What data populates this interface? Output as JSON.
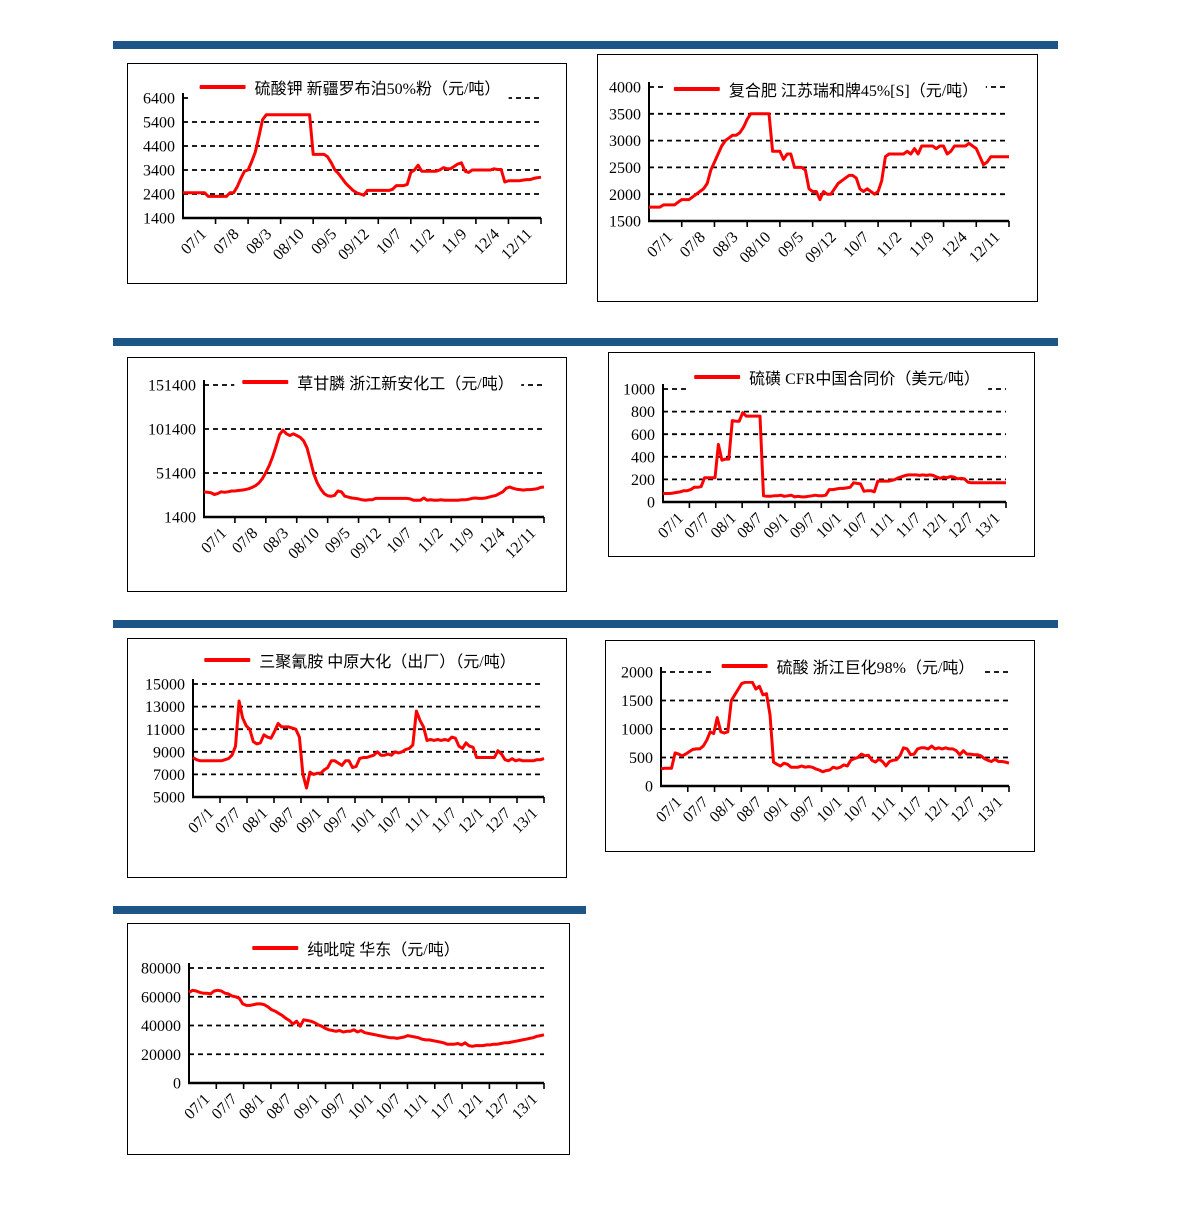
{
  "page": {
    "background": "#FFFFFF",
    "accent_bar_color": "#1D5586",
    "series_color": "#FE0000",
    "grid_color": "#000000"
  },
  "chart_data": [
    {
      "type": "line",
      "title": "硫酸钾 新疆罗布泊50%粉（元/吨）",
      "ylim": [
        1400,
        6400
      ],
      "yticks": [
        1400,
        2400,
        3400,
        4400,
        5400,
        6400
      ],
      "xticklabels": [
        "07/1",
        "07/8",
        "08/3",
        "08/10",
        "09/5",
        "09/12",
        "10/7",
        "11/2",
        "11/9",
        "12/4",
        "12/11"
      ],
      "grid": "horizontal-dashed",
      "legend_position": "top-overlap",
      "values": [
        2450,
        2450,
        2450,
        2450,
        2450,
        2450,
        2450,
        2300,
        2300,
        2300,
        2300,
        2300,
        2300,
        2450,
        2450,
        2700,
        3050,
        3350,
        3400,
        3750,
        4150,
        4800,
        5500,
        5700,
        5700,
        5700,
        5700,
        5700,
        5700,
        5700,
        5700,
        5700,
        5700,
        5700,
        5700,
        5700,
        4050,
        4050,
        4050,
        4050,
        3950,
        3700,
        3400,
        3250,
        3050,
        2850,
        2700,
        2550,
        2450,
        2400,
        2350,
        2550,
        2550,
        2550,
        2550,
        2550,
        2550,
        2550,
        2600,
        2750,
        2750,
        2750,
        2800,
        3300,
        3400,
        3600,
        3350,
        3350,
        3350,
        3350,
        3350,
        3400,
        3500,
        3450,
        3450,
        3550,
        3650,
        3700,
        3350,
        3300,
        3400,
        3400,
        3400,
        3400,
        3400,
        3400,
        3450,
        3420,
        3420,
        2900,
        2950,
        2950,
        2950,
        2950,
        2980,
        3000,
        3000,
        3050,
        3080,
        3100
      ]
    },
    {
      "type": "line",
      "title": "复合肥 江苏瑞和牌45%[S]（元/吨）",
      "ylim": [
        1500,
        4000
      ],
      "yticks": [
        1500,
        2000,
        2500,
        3000,
        3500,
        4000
      ],
      "xticklabels": [
        "07/1",
        "07/8",
        "08/3",
        "08/10",
        "09/5",
        "09/12",
        "10/7",
        "11/2",
        "11/9",
        "12/4",
        "12/11"
      ],
      "grid": "horizontal-dashed",
      "legend_position": "top-overlap",
      "values": [
        1760,
        1760,
        1760,
        1760,
        1800,
        1800,
        1800,
        1800,
        1850,
        1900,
        1900,
        1900,
        1950,
        2000,
        2050,
        2100,
        2200,
        2450,
        2600,
        2750,
        2900,
        3000,
        3050,
        3100,
        3100,
        3150,
        3250,
        3400,
        3500,
        3500,
        3500,
        3500,
        3500,
        3500,
        2800,
        2800,
        2800,
        2650,
        2750,
        2750,
        2500,
        2500,
        2500,
        2450,
        2100,
        2050,
        2050,
        1900,
        2050,
        2000,
        2000,
        2100,
        2200,
        2250,
        2300,
        2350,
        2350,
        2300,
        2100,
        2050,
        2100,
        2050,
        2000,
        2050,
        2250,
        2700,
        2750,
        2750,
        2750,
        2750,
        2750,
        2800,
        2750,
        2850,
        2750,
        2900,
        2900,
        2900,
        2900,
        2850,
        2900,
        2900,
        2750,
        2800,
        2900,
        2900,
        2900,
        2900,
        2950,
        2900,
        2850,
        2700,
        2550,
        2600,
        2700,
        2700,
        2700,
        2700,
        2700,
        2700
      ]
    },
    {
      "type": "line",
      "title": "草甘膦 浙江新安化工（元/吨）",
      "ylim": [
        1400,
        151400
      ],
      "yticks": [
        1400,
        51400,
        101400,
        151400
      ],
      "xticklabels": [
        "07/1",
        "07/8",
        "08/3",
        "08/10",
        "09/5",
        "09/12",
        "10/7",
        "11/2",
        "11/9",
        "12/4",
        "12/11"
      ],
      "grid": "horizontal-dashed",
      "legend_position": "top-overlap",
      "values": [
        30000,
        29500,
        29000,
        27000,
        28000,
        30000,
        29500,
        30000,
        31000,
        31000,
        31500,
        32000,
        32500,
        33500,
        35000,
        37000,
        40000,
        45000,
        52000,
        60000,
        70000,
        82000,
        95000,
        100000,
        96000,
        94000,
        96000,
        94000,
        92000,
        88000,
        80000,
        65000,
        50000,
        40000,
        33000,
        28000,
        25500,
        25000,
        26000,
        31000,
        30000,
        25000,
        24000,
        23000,
        22500,
        22000,
        21000,
        20500,
        21000,
        21000,
        22500,
        22500,
        22500,
        22500,
        22500,
        22500,
        22500,
        22500,
        22500,
        22500,
        22000,
        20500,
        20500,
        20500,
        23000,
        20500,
        21000,
        20500,
        20500,
        21000,
        20500,
        20500,
        20500,
        20500,
        20500,
        21000,
        21000,
        21500,
        22500,
        23000,
        22500,
        22500,
        23000,
        24000,
        25000,
        26000,
        28000,
        30000,
        34000,
        35500,
        34000,
        33000,
        32500,
        32000,
        32500,
        32500,
        33000,
        33500,
        35000,
        35500
      ]
    },
    {
      "type": "line",
      "title": "硫磺 CFR中国合同价（美元/吨）",
      "ylim": [
        0,
        1000
      ],
      "yticks": [
        0,
        200,
        400,
        600,
        800,
        1000
      ],
      "xticklabels": [
        "07/1",
        "07/7",
        "08/1",
        "08/7",
        "09/1",
        "09/7",
        "10/1",
        "10/7",
        "11/1",
        "11/7",
        "12/1",
        "12/7",
        "13/1"
      ],
      "grid": "horizontal-dashed",
      "legend_position": "top-overlap",
      "values": [
        75,
        75,
        75,
        80,
        85,
        90,
        100,
        100,
        110,
        130,
        130,
        135,
        215,
        215,
        215,
        215,
        510,
        370,
        380,
        380,
        720,
        715,
        715,
        790,
        760,
        760,
        760,
        760,
        760,
        55,
        50,
        50,
        55,
        55,
        60,
        50,
        55,
        60,
        45,
        50,
        45,
        45,
        50,
        55,
        60,
        55,
        55,
        60,
        110,
        110,
        115,
        120,
        120,
        125,
        130,
        170,
        165,
        160,
        95,
        100,
        100,
        90,
        185,
        185,
        185,
        185,
        190,
        200,
        215,
        225,
        235,
        240,
        240,
        240,
        235,
        240,
        235,
        240,
        235,
        220,
        210,
        220,
        215,
        225,
        220,
        205,
        210,
        205,
        175,
        170,
        170,
        170,
        170,
        170,
        170,
        170,
        170,
        170,
        170,
        170
      ]
    },
    {
      "type": "line",
      "title": "三聚氰胺 中原大化（出厂）（元/吨）",
      "ylim": [
        5000,
        15000
      ],
      "yticks": [
        5000,
        7000,
        9000,
        11000,
        13000,
        15000
      ],
      "xticklabels": [
        "07/1",
        "07/7",
        "08/1",
        "08/7",
        "09/1",
        "09/7",
        "10/1",
        "10/7",
        "11/1",
        "11/7",
        "12/1",
        "12/7",
        "13/1"
      ],
      "grid": "horizontal-dashed",
      "legend_position": "above",
      "values": [
        8500,
        8300,
        8200,
        8200,
        8200,
        8200,
        8200,
        8200,
        8200,
        8300,
        8400,
        8700,
        9500,
        13500,
        12000,
        11300,
        11000,
        9900,
        9700,
        9800,
        10500,
        10300,
        10200,
        10800,
        11500,
        11200,
        11200,
        11200,
        11100,
        11000,
        10300,
        7000,
        5800,
        7200,
        7000,
        7100,
        7100,
        7400,
        7600,
        8200,
        8200,
        8000,
        7800,
        8200,
        8200,
        7600,
        7700,
        8400,
        8500,
        8500,
        8600,
        8700,
        9000,
        8700,
        8700,
        8800,
        8700,
        9000,
        8900,
        9000,
        9200,
        9300,
        9600,
        12600,
        11800,
        11200,
        10000,
        10100,
        10000,
        10100,
        10000,
        10100,
        10000,
        10300,
        10200,
        9500,
        9300,
        9800,
        9500,
        9400,
        8500,
        8500,
        8500,
        8500,
        8500,
        8500,
        9100,
        8800,
        8300,
        8200,
        8400,
        8200,
        8300,
        8200,
        8200,
        8200,
        8200,
        8300,
        8300,
        8400
      ]
    },
    {
      "type": "line",
      "title": "硫酸 浙江巨化98%（元/吨）",
      "ylim": [
        0,
        2000
      ],
      "yticks": [
        0,
        500,
        1000,
        1500,
        2000
      ],
      "xticklabels": [
        "07/1",
        "07/7",
        "08/1",
        "08/7",
        "09/1",
        "09/7",
        "10/1",
        "10/7",
        "11/1",
        "11/7",
        "12/1",
        "12/7",
        "13/1"
      ],
      "grid": "horizontal-dashed",
      "legend_position": "top-overlap",
      "values": [
        300,
        310,
        310,
        310,
        580,
        560,
        530,
        560,
        600,
        640,
        650,
        650,
        700,
        800,
        950,
        920,
        1200,
        950,
        930,
        950,
        1500,
        1600,
        1700,
        1800,
        1820,
        1820,
        1820,
        1700,
        1750,
        1600,
        1620,
        1250,
        420,
        380,
        350,
        400,
        380,
        330,
        330,
        330,
        350,
        330,
        340,
        330,
        300,
        280,
        250,
        270,
        280,
        330,
        310,
        330,
        370,
        350,
        450,
        480,
        500,
        560,
        530,
        540,
        450,
        420,
        470,
        430,
        350,
        430,
        450,
        460,
        530,
        670,
        650,
        550,
        560,
        650,
        670,
        670,
        650,
        700,
        650,
        670,
        650,
        670,
        650,
        650,
        620,
        550,
        620,
        560,
        560,
        550,
        550,
        530,
        480,
        450,
        430,
        470,
        430,
        430,
        420,
        400
      ]
    },
    {
      "type": "line",
      "title": "纯吡啶 华东（元/吨）",
      "ylim": [
        0,
        80000
      ],
      "yticks": [
        0,
        20000,
        40000,
        60000,
        80000
      ],
      "xticklabels": [
        "07/1",
        "07/7",
        "08/1",
        "08/7",
        "09/1",
        "09/7",
        "10/1",
        "10/7",
        "11/1",
        "11/7",
        "12/1",
        "12/7",
        "13/1"
      ],
      "grid": "horizontal-dashed",
      "legend_position": "above",
      "values": [
        63000,
        64500,
        64000,
        63000,
        62500,
        62500,
        62000,
        64000,
        64500,
        64000,
        62500,
        62000,
        60500,
        60000,
        59000,
        55000,
        54000,
        54000,
        54500,
        55000,
        55000,
        54500,
        53000,
        51000,
        50000,
        48500,
        47000,
        45000,
        43500,
        41000,
        43000,
        39500,
        44000,
        43500,
        43000,
        42000,
        40500,
        39500,
        38000,
        37000,
        36500,
        36000,
        36500,
        35500,
        36000,
        36000,
        37000,
        35500,
        36500,
        35000,
        34500,
        34000,
        33500,
        33000,
        32500,
        32000,
        31500,
        31500,
        31000,
        31500,
        32000,
        33000,
        32500,
        32000,
        31500,
        30500,
        30000,
        30000,
        29500,
        29000,
        28500,
        28000,
        27000,
        27000,
        27000,
        27500,
        26500,
        28000,
        26000,
        25500,
        26000,
        26000,
        26000,
        26500,
        26500,
        27000,
        27000,
        27500,
        28000,
        28000,
        28500,
        29000,
        29500,
        30000,
        30500,
        31000,
        31500,
        32500,
        33000,
        33500
      ]
    }
  ]
}
